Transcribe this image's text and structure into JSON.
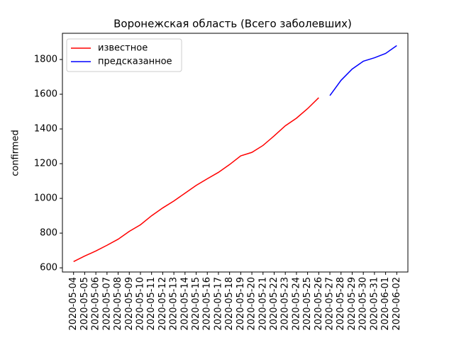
{
  "chart_data": {
    "type": "line",
    "title": "Воронежская область (Всего заболевших)",
    "ylabel": "confirmed",
    "x": [
      "2020-05-04",
      "2020-05-05",
      "2020-05-06",
      "2020-05-07",
      "2020-05-08",
      "2020-05-09",
      "2020-05-10",
      "2020-05-11",
      "2020-05-12",
      "2020-05-13",
      "2020-05-14",
      "2020-05-15",
      "2020-05-16",
      "2020-05-17",
      "2020-05-18",
      "2020-05-19",
      "2020-05-20",
      "2020-05-21",
      "2020-05-22",
      "2020-05-23",
      "2020-05-24",
      "2020-05-25",
      "2020-05-26",
      "2020-05-27",
      "2020-05-28",
      "2020-05-29",
      "2020-05-30",
      "2020-05-31",
      "2020-06-01",
      "2020-06-02"
    ],
    "series": [
      {
        "name": "известное",
        "color": "#ff0000",
        "values": [
          636,
          668,
          697,
          730,
          765,
          810,
          848,
          900,
          945,
          985,
          1030,
          1075,
          1113,
          1150,
          1195,
          1245,
          1265,
          1305,
          1360,
          1418,
          1462,
          1517,
          1580,
          null,
          null,
          null,
          null,
          null,
          null,
          null
        ]
      },
      {
        "name": "предсказанное",
        "color": "#0000ff",
        "values": [
          null,
          null,
          null,
          null,
          null,
          null,
          null,
          null,
          null,
          null,
          null,
          null,
          null,
          null,
          null,
          null,
          null,
          null,
          null,
          null,
          null,
          null,
          null,
          1592,
          1680,
          1745,
          1790,
          1810,
          1835,
          1880
        ]
      }
    ],
    "ylim": [
      576,
      1951
    ],
    "yticks": [
      600,
      800,
      1000,
      1200,
      1400,
      1600,
      1800
    ],
    "legend": "upper left"
  }
}
